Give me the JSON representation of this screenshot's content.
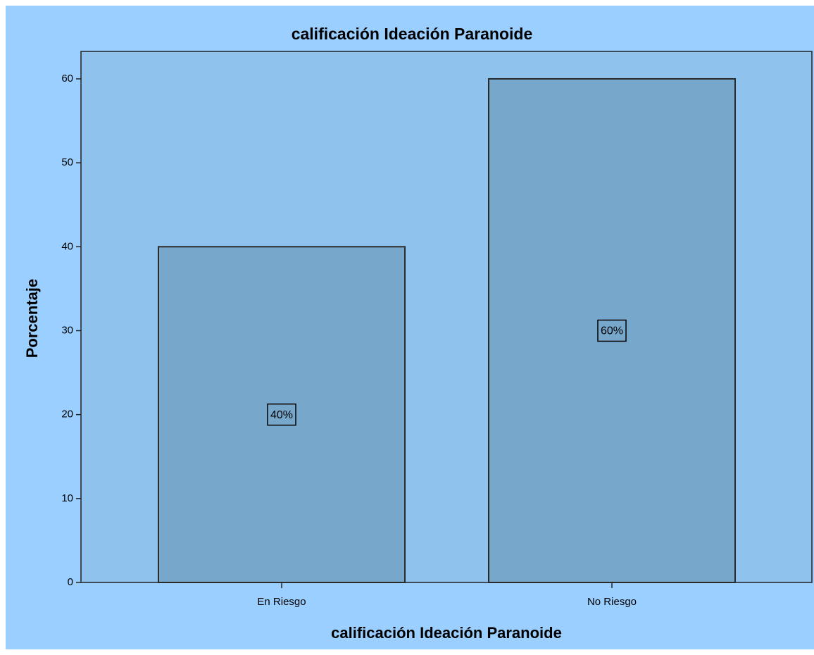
{
  "chart_data": {
    "type": "bar",
    "title": "calificación Ideación Paranoide",
    "x_label": "calificación Ideación Paranoide",
    "y_label": "Porcentaje",
    "categories": [
      "En Riesgo",
      "No Riesgo"
    ],
    "values": [
      40,
      60
    ],
    "value_labels": [
      "40%",
      "60%"
    ],
    "color": "#78a7cc",
    "ylim": [
      0,
      63.27
    ],
    "yticks": [
      0,
      10,
      20,
      30,
      40,
      50,
      60
    ],
    "grid": false
  }
}
